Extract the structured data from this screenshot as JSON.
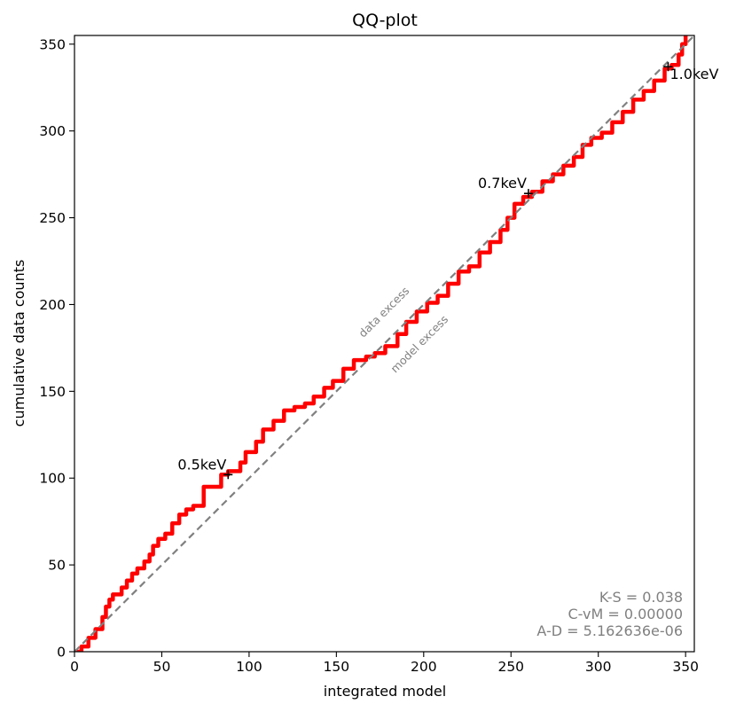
{
  "chart_data": {
    "type": "line",
    "title": "QQ-plot",
    "xlabel": "integrated model",
    "ylabel": "cumulative data counts",
    "xlim": [
      0,
      355
    ],
    "ylim": [
      0,
      355
    ],
    "xticks": [
      0,
      50,
      100,
      150,
      200,
      250,
      300,
      350
    ],
    "yticks": [
      0,
      50,
      100,
      150,
      200,
      250,
      300,
      350
    ],
    "grid": false,
    "series": [
      {
        "color": "#ff0000",
        "style": "step",
        "x": [
          0,
          4,
          8,
          12,
          16,
          18,
          20,
          22,
          27,
          30,
          33,
          36,
          40,
          43,
          45,
          48,
          52,
          56,
          60,
          64,
          68,
          74,
          84,
          88,
          95,
          98,
          104,
          108,
          114,
          120,
          126,
          132,
          137,
          143,
          148,
          154,
          160,
          167,
          172,
          178,
          185,
          190,
          196,
          202,
          208,
          214,
          220,
          226,
          232,
          238,
          244,
          248,
          252,
          257,
          262,
          268,
          274,
          280,
          286,
          291,
          296,
          302,
          308,
          314,
          320,
          326,
          332,
          338,
          342,
          346,
          348,
          350
        ],
        "y": [
          0,
          3,
          8,
          13,
          20,
          26,
          30,
          33,
          37,
          41,
          45,
          48,
          52,
          56,
          61,
          65,
          68,
          74,
          79,
          82,
          84,
          95,
          102,
          104,
          109,
          115,
          121,
          128,
          133,
          139,
          141,
          143,
          147,
          152,
          156,
          163,
          168,
          170,
          172,
          176,
          183,
          190,
          196,
          201,
          205,
          212,
          219,
          222,
          230,
          236,
          243,
          250,
          258,
          262,
          265,
          271,
          275,
          280,
          285,
          292,
          296,
          299,
          305,
          311,
          318,
          323,
          329,
          336,
          338,
          344,
          350,
          355
        ]
      },
      {
        "color": "#808080",
        "style": "dashed",
        "x": [
          0,
          355
        ],
        "y": [
          0,
          355
        ]
      }
    ],
    "markers": [
      {
        "x": 88,
        "y": 102,
        "label": "0.5keV",
        "label_side": "left"
      },
      {
        "x": 260,
        "y": 264,
        "label": "0.7keV",
        "label_side": "left"
      },
      {
        "x": 340,
        "y": 337,
        "label": "1.0keV",
        "label_side": "right"
      }
    ],
    "annotations": {
      "data_excess": "data excess",
      "model_excess": "model excess"
    },
    "stats": {
      "ks": "K-S = 0.038",
      "cvm": "C-vM = 0.00000",
      "ad": "A-D = 5.162636e-06"
    }
  }
}
